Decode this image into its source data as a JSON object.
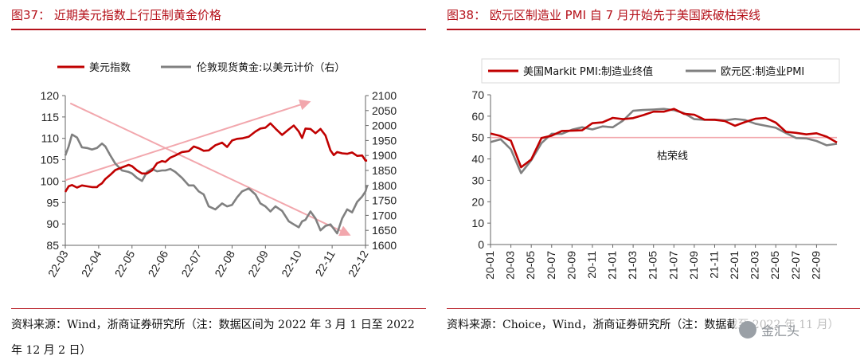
{
  "figure37": {
    "title": "图37：  近期美元指数上行压制黄金价格",
    "source": "资料来源：Wind，浙商证券研究所（注：数据区间为 2022 年 3 月 1 日至 2022 年 12 月 2 日）",
    "colors": {
      "usd": "#c00000",
      "gold": "#808080",
      "arrow": "#f2a7ad",
      "axis": "#666666"
    }
  },
  "figure38": {
    "title": "图38：  欧元区制造业 PMI 自 7 月开始先于美国跌破枯荣线",
    "source": "资料来源：Choice，Wind，浙商证券研究所（注：数据截至 2022 年 11 月）",
    "threshold_label": "枯荣线",
    "colors": {
      "us": "#c00000",
      "eu": "#808080",
      "threshold": "#f2a7ad",
      "axis": "#666666"
    }
  },
  "watermark": {
    "text": "金汇头"
  },
  "chart_data": [
    {
      "type": "line",
      "title": "图37：  近期美元指数上行压制黄金价格",
      "x_ticks": [
        "22-03",
        "22-04",
        "22-05",
        "22-06",
        "22-07",
        "22-08",
        "22-09",
        "22-10",
        "22-11",
        "22-12"
      ],
      "y_left": {
        "ticks": [
          "85",
          "90",
          "95",
          "100",
          "105",
          "110",
          "115",
          "120"
        ],
        "range": [
          85,
          120
        ]
      },
      "y_right": {
        "ticks": [
          "1600",
          "1650",
          "1700",
          "1750",
          "1800",
          "1850",
          "1900",
          "1950",
          "2000",
          "2050",
          "2100"
        ],
        "range": [
          1600,
          2100
        ]
      },
      "legend_position": "top",
      "x": [
        0,
        0.1,
        0.2,
        0.35,
        0.5,
        0.65,
        0.8,
        0.95,
        1,
        1.1,
        1.2,
        1.35,
        1.5,
        1.7,
        1.9,
        2,
        2.15,
        2.3,
        2.45,
        2.6,
        2.75,
        2.9,
        3,
        3.15,
        3.3,
        3.5,
        3.7,
        3.85,
        4,
        4.15,
        4.3,
        4.5,
        4.7,
        4.85,
        5,
        5.15,
        5.3,
        5.5,
        5.7,
        5.85,
        6,
        6.15,
        6.3,
        6.5,
        6.7,
        6.85,
        7,
        7.1,
        7.2,
        7.35,
        7.5,
        7.65,
        7.8,
        7.95,
        8.05,
        8.15,
        8.3,
        8.45,
        8.6,
        8.75,
        8.9,
        9,
        9.05
      ],
      "series": [
        {
          "name": "美元指数",
          "axis": "left",
          "values": [
            97.5,
            98.8,
            99.1,
            98.5,
            99.0,
            98.8,
            98.6,
            98.6,
            99.0,
            99.5,
            100.5,
            101.5,
            102.6,
            103.2,
            103.8,
            103.5,
            102.5,
            101.8,
            101.8,
            102.5,
            104.2,
            104.7,
            104.5,
            105.5,
            106.0,
            106.8,
            107.0,
            108.1,
            107.7,
            107.1,
            107.2,
            108.4,
            109.0,
            108.0,
            109.5,
            109.9,
            110.0,
            110.4,
            111.6,
            112.3,
            112.5,
            113.5,
            112.3,
            110.8,
            112.1,
            113.0,
            111.6,
            110.1,
            112.3,
            112.2,
            111.2,
            112.2,
            110.7,
            107.2,
            106.1,
            106.8,
            106.5,
            106.4,
            106.7,
            105.9,
            106.0,
            104.8,
            104.8
          ]
        },
        {
          "name": "伦敦现货黄金:以美元计价（右）",
          "axis": "right",
          "values": [
            1900,
            1930,
            1970,
            1960,
            1927,
            1925,
            1920,
            1925,
            1930,
            1940,
            1930,
            1900,
            1873,
            1850,
            1845,
            1840,
            1825,
            1815,
            1845,
            1855,
            1847,
            1850,
            1850,
            1855,
            1845,
            1825,
            1800,
            1800,
            1780,
            1770,
            1730,
            1720,
            1740,
            1730,
            1735,
            1760,
            1780,
            1790,
            1770,
            1740,
            1730,
            1713,
            1730,
            1715,
            1680,
            1670,
            1660,
            1680,
            1685,
            1713,
            1690,
            1650,
            1665,
            1670,
            1655,
            1640,
            1690,
            1720,
            1710,
            1745,
            1763,
            1780,
            1800
          ]
        }
      ]
    },
    {
      "type": "line",
      "title": "图38：  欧元区制造业 PMI 自 7 月开始先于美国跌破枯荣线",
      "x_ticks": [
        "20-01",
        "20-03",
        "20-05",
        "20-07",
        "20-09",
        "20-11",
        "21-01",
        "21-03",
        "21-05",
        "21-07",
        "21-09",
        "21-11",
        "22-01",
        "22-03",
        "22-05",
        "22-07",
        "22-09"
      ],
      "y_ticks": [
        "0",
        "10",
        "20",
        "30",
        "40",
        "50",
        "60",
        "70"
      ],
      "ylim": [
        0,
        70
      ],
      "threshold": 50,
      "legend_position": "top",
      "x": [
        "20-01",
        "20-02",
        "20-03",
        "20-04",
        "20-05",
        "20-06",
        "20-07",
        "20-08",
        "20-09",
        "20-10",
        "20-11",
        "20-12",
        "21-01",
        "21-02",
        "21-03",
        "21-04",
        "21-05",
        "21-06",
        "21-07",
        "21-08",
        "21-09",
        "21-10",
        "21-11",
        "21-12",
        "22-01",
        "22-02",
        "22-03",
        "22-04",
        "22-05",
        "22-06",
        "22-07",
        "22-08",
        "22-09",
        "22-10",
        "22-11"
      ],
      "series": [
        {
          "name": "美国Markit PMI:制造业终值",
          "values": [
            51.9,
            50.7,
            48.5,
            36.1,
            39.8,
            49.8,
            50.9,
            53.1,
            53.2,
            53.4,
            56.7,
            57.1,
            59.2,
            58.6,
            59.1,
            60.5,
            62.1,
            62.1,
            63.4,
            61.1,
            60.7,
            58.4,
            58.3,
            57.7,
            55.5,
            57.3,
            58.8,
            59.2,
            57.0,
            52.7,
            52.2,
            51.5,
            52.0,
            50.4,
            47.7
          ]
        },
        {
          "name": "欧元区:制造业PMI",
          "values": [
            47.9,
            49.2,
            44.5,
            33.4,
            39.4,
            47.4,
            51.8,
            51.7,
            53.7,
            54.8,
            53.8,
            55.2,
            54.8,
            57.9,
            62.5,
            62.9,
            63.1,
            63.4,
            62.8,
            61.4,
            58.6,
            58.3,
            58.4,
            58.0,
            58.7,
            58.2,
            56.5,
            55.5,
            54.6,
            52.1,
            49.8,
            49.6,
            48.4,
            46.4,
            47.1
          ]
        }
      ]
    }
  ]
}
